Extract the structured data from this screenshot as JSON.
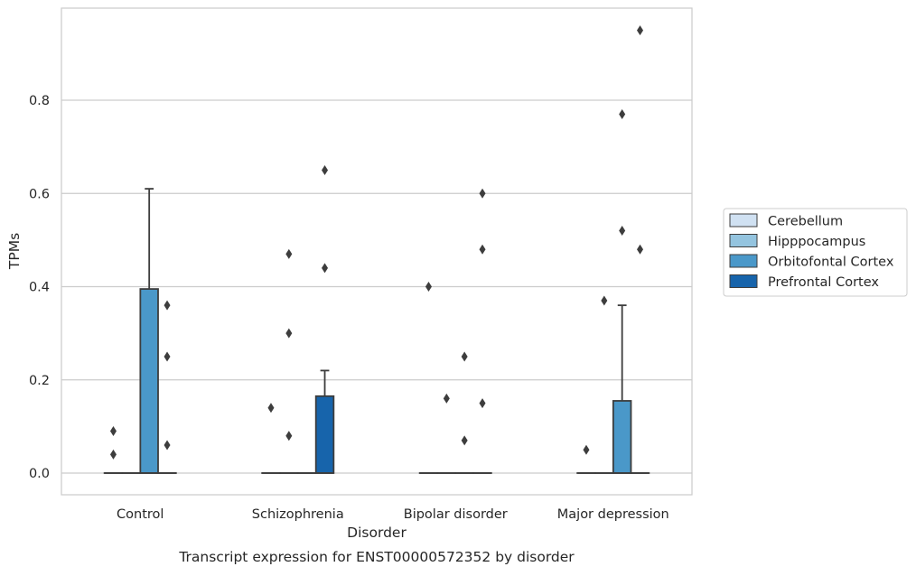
{
  "chart_data": {
    "type": "box",
    "caption": "Transcript expression for ENST00000572352 by disorder",
    "xlabel": "Disorder",
    "ylabel": "TPMs",
    "categories": [
      "Control",
      "Schizophrenia",
      "Bipolar disorder",
      "Major depression"
    ],
    "ylim": [
      -0.045,
      0.99
    ],
    "yticks": [
      0.0,
      0.2,
      0.4,
      0.6,
      0.8
    ],
    "ytick_labels": [
      "0.0",
      "0.2",
      "0.4",
      "0.6",
      "0.8"
    ],
    "grid": "horizontal",
    "legend_position": "right",
    "series": [
      {
        "name": "Cerebellum",
        "color": "#d0e1f2",
        "boxes": [
          {
            "q1": 0,
            "median": 0,
            "q3": 0,
            "whisker_low": 0,
            "whisker_high": 0,
            "outliers": [
              0.09,
              0.04
            ]
          },
          {
            "q1": 0,
            "median": 0,
            "q3": 0,
            "whisker_low": 0,
            "whisker_high": 0,
            "outliers": [
              0.14
            ]
          },
          {
            "q1": 0,
            "median": 0,
            "q3": 0,
            "whisker_low": 0,
            "whisker_high": 0,
            "outliers": [
              0.4
            ]
          },
          {
            "q1": 0,
            "median": 0,
            "q3": 0,
            "whisker_low": 0,
            "whisker_high": 0,
            "outliers": [
              0.05
            ]
          }
        ]
      },
      {
        "name": "Hipppocampus",
        "color": "#94c4df",
        "boxes": [
          {
            "q1": 0,
            "median": 0,
            "q3": 0,
            "whisker_low": 0,
            "whisker_high": 0,
            "outliers": []
          },
          {
            "q1": 0,
            "median": 0,
            "q3": 0,
            "whisker_low": 0,
            "whisker_high": 0,
            "outliers": [
              0.47,
              0.3,
              0.08
            ]
          },
          {
            "q1": 0,
            "median": 0,
            "q3": 0,
            "whisker_low": 0,
            "whisker_high": 0,
            "outliers": [
              0.16
            ]
          },
          {
            "q1": 0,
            "median": 0,
            "q3": 0,
            "whisker_low": 0,
            "whisker_high": 0,
            "outliers": [
              0.37
            ]
          }
        ]
      },
      {
        "name": "Orbitofontal Cortex",
        "color": "#4a98c9",
        "boxes": [
          {
            "q1": 0,
            "median": 0,
            "q3": 0.395,
            "whisker_low": 0,
            "whisker_high": 0.61,
            "outliers": []
          },
          {
            "q1": 0,
            "median": 0,
            "q3": 0,
            "whisker_low": 0,
            "whisker_high": 0,
            "outliers": []
          },
          {
            "q1": 0,
            "median": 0,
            "q3": 0,
            "whisker_low": 0,
            "whisker_high": 0,
            "outliers": [
              0.25,
              0.07
            ]
          },
          {
            "q1": 0,
            "median": 0,
            "q3": 0.155,
            "whisker_low": 0,
            "whisker_high": 0.36,
            "outliers": [
              0.77,
              0.52
            ]
          }
        ]
      },
      {
        "name": "Prefrontal Cortex",
        "color": "#1764ab",
        "boxes": [
          {
            "q1": 0,
            "median": 0,
            "q3": 0,
            "whisker_low": 0,
            "whisker_high": 0,
            "outliers": [
              0.36,
              0.25,
              0.06
            ]
          },
          {
            "q1": 0,
            "median": 0,
            "q3": 0.165,
            "whisker_low": 0,
            "whisker_high": 0.22,
            "outliers": [
              0.65,
              0.44
            ]
          },
          {
            "q1": 0,
            "median": 0,
            "q3": 0,
            "whisker_low": 0,
            "whisker_high": 0,
            "outliers": [
              0.6,
              0.48,
              0.15
            ]
          },
          {
            "q1": 0,
            "median": 0,
            "q3": 0,
            "whisker_low": 0,
            "whisker_high": 0,
            "outliers": [
              0.95,
              0.48
            ]
          }
        ]
      }
    ]
  }
}
